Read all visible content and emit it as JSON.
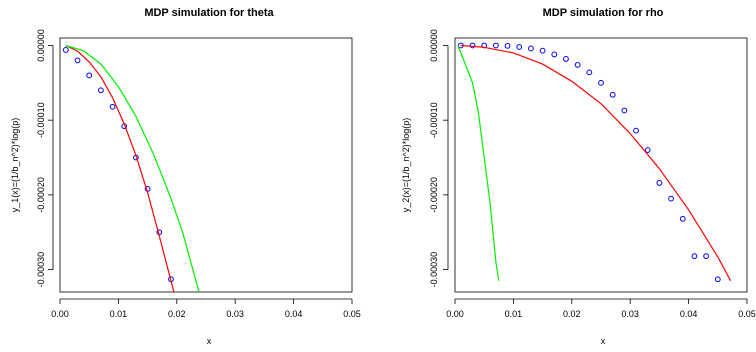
{
  "chart_data": [
    {
      "type": "scatter",
      "title": "MDP simulation for theta",
      "xlabel": "x",
      "ylabel": "y_1(x)=(1/b_n^2)*log(p)",
      "xlim": [
        0.0,
        0.05
      ],
      "ylim": [
        -0.00033,
        1e-05
      ],
      "xticks": [
        0.0,
        0.01,
        0.02,
        0.03,
        0.04,
        0.05
      ],
      "xtick_labels": [
        "0.00",
        "0.01",
        "0.02",
        "0.03",
        "0.04",
        "0.05"
      ],
      "yticks": [
        0.0,
        -0.0001,
        -0.0002,
        -0.0003
      ],
      "ytick_labels": [
        "0.00000",
        "-0.00010",
        "-0.00020",
        "-0.00030"
      ],
      "series": [
        {
          "kind": "points",
          "color": "#0000ff",
          "x": [
            0.001,
            0.003,
            0.005,
            0.007,
            0.009,
            0.011,
            0.013,
            0.015,
            0.017,
            0.019
          ],
          "y": [
            -6e-06,
            -2e-05,
            -4e-05,
            -6e-05,
            -8.2e-05,
            -0.000108,
            -0.00015,
            -0.000192,
            -0.00025,
            -0.000313
          ]
        },
        {
          "kind": "line",
          "color": "#ff0000",
          "x": [
            0.001,
            0.003,
            0.005,
            0.007,
            0.009,
            0.011,
            0.013,
            0.015,
            0.017,
            0.019,
            0.0195
          ],
          "y": [
            0.0,
            -7.5e-06,
            -2.2e-05,
            -4.2e-05,
            -7e-05,
            -0.000105,
            -0.000147,
            -0.000197,
            -0.000255,
            -0.000315,
            -0.00033
          ]
        },
        {
          "kind": "line",
          "color": "#00ee00",
          "x": [
            0.001,
            0.004,
            0.007,
            0.01,
            0.013,
            0.016,
            0.019,
            0.021,
            0.0238
          ],
          "y": [
            0.0,
            -7e-06,
            -2.5e-05,
            -5.5e-05,
            -9.5e-05,
            -0.000145,
            -0.000205,
            -0.00025,
            -0.00033
          ]
        }
      ]
    },
    {
      "type": "scatter",
      "title": "MDP simulation for rho",
      "xlabel": "x",
      "ylabel": "y_2(x)=(1/b_n^2)*log(p)",
      "xlim": [
        0.0,
        0.05
      ],
      "ylim": [
        -0.00033,
        1e-05
      ],
      "xticks": [
        0.0,
        0.01,
        0.02,
        0.03,
        0.04,
        0.05
      ],
      "xtick_labels": [
        "0.00",
        "0.01",
        "0.02",
        "0.03",
        "0.04",
        "0.05"
      ],
      "yticks": [
        0.0,
        -0.0001,
        -0.0002,
        -0.0003
      ],
      "ytick_labels": [
        "0.00000",
        "-0.00010",
        "-0.00020",
        "-0.00030"
      ],
      "series": [
        {
          "kind": "points",
          "color": "#0000ff",
          "x": [
            0.001,
            0.003,
            0.005,
            0.007,
            0.009,
            0.011,
            0.013,
            0.015,
            0.017,
            0.019,
            0.021,
            0.023,
            0.025,
            0.027,
            0.029,
            0.031,
            0.033,
            0.035,
            0.037,
            0.039,
            0.041,
            0.043,
            0.045
          ],
          "y": [
            0.0,
            0.0,
            0.0,
            0.0,
            -5e-07,
            -2e-06,
            -4e-06,
            -7e-06,
            -1.2e-05,
            -1.8e-05,
            -2.6e-05,
            -3.6e-05,
            -5e-05,
            -6.6e-05,
            -8.7e-05,
            -0.000114,
            -0.00014,
            -0.000184,
            -0.000205,
            -0.000232,
            -0.000282,
            -0.000282,
            -0.000313
          ]
        },
        {
          "kind": "line",
          "color": "#ff0000",
          "x": [
            0.001,
            0.005,
            0.01,
            0.015,
            0.02,
            0.025,
            0.03,
            0.035,
            0.04,
            0.045,
            0.0472
          ],
          "y": [
            0.0,
            -2.5e-06,
            -1e-05,
            -2.5e-05,
            -4.8e-05,
            -7.8e-05,
            -0.000118,
            -0.000165,
            -0.00022,
            -0.000283,
            -0.000315
          ]
        },
        {
          "kind": "line",
          "color": "#00ee00",
          "x": [
            0.0005,
            0.0015,
            0.003,
            0.004,
            0.005,
            0.006,
            0.007,
            0.0075
          ],
          "y": [
            0.0,
            -2e-05,
            -5e-05,
            -9e-05,
            -0.00015,
            -0.00021,
            -0.00029,
            -0.000315
          ]
        }
      ]
    }
  ]
}
